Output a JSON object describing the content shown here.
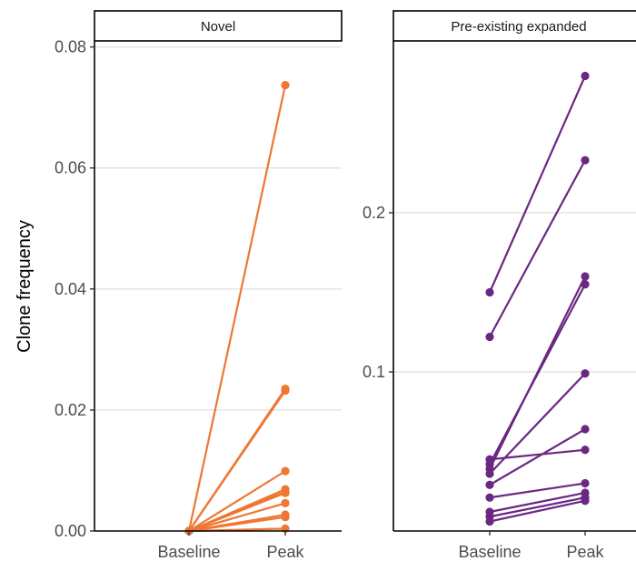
{
  "y_axis_title": "Clone frequency",
  "chart_data": [
    {
      "type": "line",
      "facet": "Novel",
      "categories": [
        "Baseline",
        "Peak"
      ],
      "ylim": [
        0,
        0.081
      ],
      "yticks": [
        0.0,
        0.02,
        0.04,
        0.06,
        0.08
      ],
      "ytick_labels": [
        "0.00",
        "0.02",
        "0.04",
        "0.06",
        "0.08"
      ],
      "color": "#ee7733",
      "grid": true,
      "series": [
        {
          "values": [
            0,
            0.0737
          ]
        },
        {
          "values": [
            0,
            0.0235
          ]
        },
        {
          "values": [
            0,
            0.0232
          ]
        },
        {
          "values": [
            0,
            0.0099
          ]
        },
        {
          "values": [
            0,
            0.0069
          ]
        },
        {
          "values": [
            0,
            0.0065
          ]
        },
        {
          "values": [
            0,
            0.0063
          ]
        },
        {
          "values": [
            0,
            0.0046
          ]
        },
        {
          "values": [
            0,
            0.0027
          ]
        },
        {
          "values": [
            0,
            0.0023
          ]
        },
        {
          "values": [
            0,
            0.0004
          ]
        }
      ]
    },
    {
      "type": "line",
      "facet": "Pre-existing expanded",
      "categories": [
        "Baseline",
        "Peak"
      ],
      "ylim": [
        0,
        0.308
      ],
      "yticks": [
        0.1,
        0.2
      ],
      "ytick_labels": [
        "0.1",
        "0.2"
      ],
      "color": "#6a2883",
      "grid": true,
      "series": [
        {
          "values": [
            0.15,
            0.286
          ]
        },
        {
          "values": [
            0.122,
            0.233
          ]
        },
        {
          "values": [
            0.039,
            0.16
          ]
        },
        {
          "values": [
            0.042,
            0.155
          ]
        },
        {
          "values": [
            0.036,
            0.099
          ]
        },
        {
          "values": [
            0.029,
            0.064
          ]
        },
        {
          "values": [
            0.045,
            0.051
          ]
        },
        {
          "values": [
            0.021,
            0.03
          ]
        },
        {
          "values": [
            0.012,
            0.024
          ]
        },
        {
          "values": [
            0.006,
            0.019
          ]
        },
        {
          "values": [
            0.009,
            0.021
          ]
        }
      ]
    }
  ]
}
